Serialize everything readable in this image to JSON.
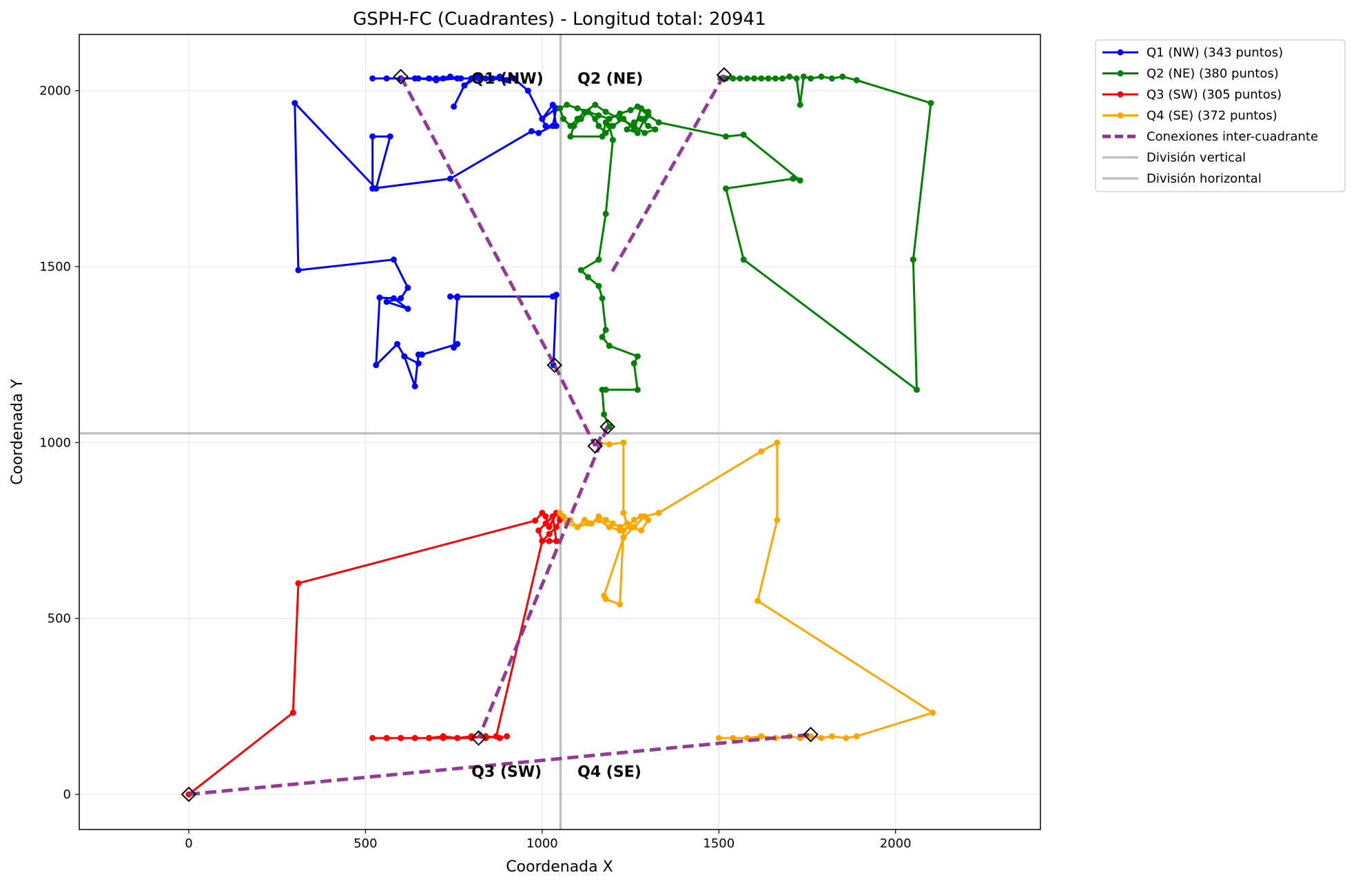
{
  "chart_data": {
    "type": "line",
    "title": "GSPH-FC (Cuadrantes) - Longitud total: 20941",
    "xlabel": "Coordenada X",
    "ylabel": "Coordenada Y",
    "xlim": [
      -310,
      2410
    ],
    "ylim": [
      -100,
      2160
    ],
    "xticks": [
      0,
      500,
      1000,
      1500,
      2000
    ],
    "yticks": [
      0,
      500,
      1000,
      1500,
      2000
    ],
    "xtick_labels": [
      "0",
      "500",
      "1000",
      "1500",
      "2000"
    ],
    "ytick_labels": [
      "0",
      "500",
      "1000",
      "1500",
      "2000"
    ],
    "grid": true,
    "legend_position": "outside-top-right",
    "colors": {
      "q1": "#0000ff",
      "q2": "#008000",
      "q3": "#ff0000",
      "q4": "#ffa500",
      "connections": "#8b2f91",
      "divisions": "#bfbfbf"
    },
    "divisions": {
      "vertical_x": 1052,
      "horizontal_y": 1026
    },
    "quadrant_labels": [
      {
        "text": "Q1 (NW)",
        "x": 800,
        "y": 2020
      },
      {
        "text": "Q2 (NE)",
        "x": 1100,
        "y": 2020
      },
      {
        "text": "Q3 (SW)",
        "x": 800,
        "y": 50
      },
      {
        "text": "Q4 (SE)",
        "x": 1100,
        "y": 50
      }
    ],
    "series": [
      {
        "name": "Q1 (NW) (343 puntos)",
        "color": "#0000ff",
        "style": "solid-markers",
        "x": [
          520,
          560,
          600,
          640,
          680,
          720,
          760,
          800,
          840,
          880,
          900,
          860,
          820,
          780,
          750,
          780,
          800,
          770,
          740,
          700,
          680,
          650,
          700,
          760,
          820,
          880,
          920,
          960,
          1000,
          1030,
          1040,
          1010,
          1000,
          1040,
          1030,
          990,
          970,
          740,
          520,
          520,
          570,
          530,
          300,
          310,
          580,
          620,
          600,
          560,
          620,
          580,
          540,
          530,
          590,
          610,
          650,
          610,
          640,
          650,
          660,
          760,
          750,
          760,
          740,
          760,
          1030,
          1040,
          1032
        ],
        "y": [
          2035,
          2035,
          2035,
          2035,
          2035,
          2035,
          2035,
          2035,
          2035,
          2040,
          2030,
          2035,
          2040,
          2015,
          1955,
          2015,
          2035,
          2035,
          2040,
          2035,
          2035,
          2035,
          2030,
          2035,
          2035,
          2035,
          2035,
          2000,
          1920,
          1960,
          1900,
          1900,
          1920,
          1950,
          1900,
          1880,
          1885,
          1750,
          1722,
          1870,
          1870,
          1722,
          1965,
          1490,
          1520,
          1440,
          1410,
          1400,
          1380,
          1410,
          1412,
          1220,
          1280,
          1245,
          1225,
          1245,
          1160,
          1250,
          1250,
          1280,
          1270,
          1412,
          1415,
          1415,
          1415,
          1420,
          1220
        ]
      },
      {
        "name": "Q2 (NE) (380 puntos)",
        "color": "#008000",
        "style": "solid-markers",
        "x": [
          1190,
          1175,
          1170,
          1180,
          1270,
          1260,
          1270,
          1190,
          1170,
          1180,
          1170,
          1160,
          1130,
          1110,
          1160,
          1180,
          1200,
          1190,
          1180,
          1170,
          1080,
          1090,
          1110,
          1130,
          1150,
          1160,
          1180,
          1200,
          1230,
          1260,
          1280,
          1300,
          1290,
          1270,
          1240,
          1260,
          1280,
          1300,
          1320,
          1290,
          1260,
          1220,
          1180,
          1150,
          1120,
          1100,
          1080,
          1060,
          1050,
          1070,
          1100,
          1130,
          1160,
          1190,
          1220,
          1250,
          1270,
          1300,
          1330,
          1520,
          1570,
          1730,
          1710,
          1520,
          1570,
          2060,
          2050,
          2050,
          2100,
          1890,
          1850,
          1820,
          1790,
          1760,
          1740,
          1730,
          1720,
          1700,
          1680,
          1660,
          1640,
          1620,
          1600,
          1580,
          1560,
          1540,
          1520,
          1505,
          1520
        ],
        "y": [
          1045,
          1080,
          1150,
          1150,
          1150,
          1225,
          1245,
          1275,
          1300,
          1320,
          1410,
          1445,
          1470,
          1490,
          1520,
          1650,
          1860,
          1900,
          1910,
          1870,
          1870,
          1900,
          1920,
          1940,
          1920,
          1900,
          1880,
          1900,
          1920,
          1890,
          1950,
          1940,
          1920,
          1880,
          1890,
          1910,
          1920,
          1900,
          1890,
          1880,
          1900,
          1920,
          1940,
          1960,
          1940,
          1920,
          1900,
          1920,
          1950,
          1960,
          1950,
          1940,
          1930,
          1920,
          1935,
          1945,
          1955,
          1930,
          1910,
          1870,
          1875,
          1745,
          1750,
          1722,
          1520,
          1150,
          1520,
          1520,
          1965,
          2030,
          2040,
          2035,
          2040,
          2035,
          2040,
          1960,
          2035,
          2040,
          2035,
          2035,
          2035,
          2035,
          2035,
          2035,
          2035,
          2035,
          2035,
          2035,
          2035
        ]
      },
      {
        "name": "Q3 (SW) (305 puntos)",
        "color": "#ff0000",
        "style": "solid-markers",
        "x": [
          0,
          295,
          310,
          980,
          1000,
          1010,
          1020,
          1040,
          1050,
          1040,
          1020,
          1000,
          990,
          1010,
          1030,
          1040,
          1020,
          1000,
          870,
          840,
          800,
          760,
          720,
          680,
          640,
          600,
          560,
          520,
          560,
          600,
          640,
          680,
          720,
          760,
          800,
          840,
          880,
          900
        ],
        "y": [
          0,
          232,
          600,
          778,
          800,
          790,
          760,
          800,
          780,
          760,
          740,
          720,
          750,
          770,
          790,
          720,
          720,
          720,
          165,
          160,
          165,
          160,
          165,
          160,
          160,
          160,
          160,
          160,
          160,
          160,
          160,
          160,
          160,
          160,
          160,
          165,
          160,
          165
        ]
      },
      {
        "name": "Q4 (SE) (372 puntos)",
        "color": "#ffa500",
        "style": "solid-markers",
        "x": [
          1160,
          1190,
          1230,
          1230,
          1240,
          1220,
          1200,
          1180,
          1160,
          1140,
          1120,
          1100,
          1080,
          1060,
          1050,
          1070,
          1100,
          1130,
          1160,
          1190,
          1220,
          1250,
          1280,
          1300,
          1280,
          1260,
          1230,
          1220,
          1180,
          1175,
          1230,
          1260,
          1290,
          1330,
          1620,
          1665,
          1665,
          1610,
          2105,
          1890,
          1860,
          1820,
          1790,
          1760,
          1730,
          1700,
          1660,
          1620,
          1580,
          1540,
          1500
        ],
        "y": [
          1000,
          995,
          1000,
          800,
          770,
          760,
          770,
          780,
          790,
          770,
          780,
          760,
          780,
          790,
          800,
          770,
          760,
          770,
          780,
          760,
          750,
          760,
          750,
          780,
          790,
          780,
          750,
          540,
          555,
          565,
          730,
          760,
          790,
          800,
          975,
          1000,
          780,
          550,
          232,
          165,
          160,
          165,
          160,
          165,
          160,
          165,
          160,
          165,
          160,
          160,
          160
        ]
      },
      {
        "name": "Conexiones inter-cuadrante",
        "color": "#8b2f91",
        "style": "dashed",
        "segments": [
          {
            "x": [
              600,
              1035
            ],
            "y": [
              2040,
              1220
            ]
          },
          {
            "x": [
              1035,
              1150
            ],
            "y": [
              1220,
              990
            ]
          },
          {
            "x": [
              1150,
              1185
            ],
            "y": [
              990,
              1045
            ]
          },
          {
            "x": [
              1185,
              820
            ],
            "y": [
              1045,
              160
            ]
          },
          {
            "x": [
              0,
              1760
            ],
            "y": [
              0,
              170
            ]
          },
          {
            "x": [
              1515,
              1195
            ],
            "y": [
              2045,
              1480
            ]
          }
        ]
      },
      {
        "name": "División vertical",
        "color": "#bfbfbf",
        "style": "solid-thin"
      },
      {
        "name": "División horizontal",
        "color": "#bfbfbf",
        "style": "solid-thin"
      }
    ],
    "endpoint_markers": [
      {
        "x": 0,
        "y": 0
      },
      {
        "x": 600,
        "y": 2040
      },
      {
        "x": 1035,
        "y": 1220
      },
      {
        "x": 1150,
        "y": 990
      },
      {
        "x": 1185,
        "y": 1045
      },
      {
        "x": 820,
        "y": 160
      },
      {
        "x": 1515,
        "y": 2045
      },
      {
        "x": 1760,
        "y": 170
      }
    ]
  }
}
